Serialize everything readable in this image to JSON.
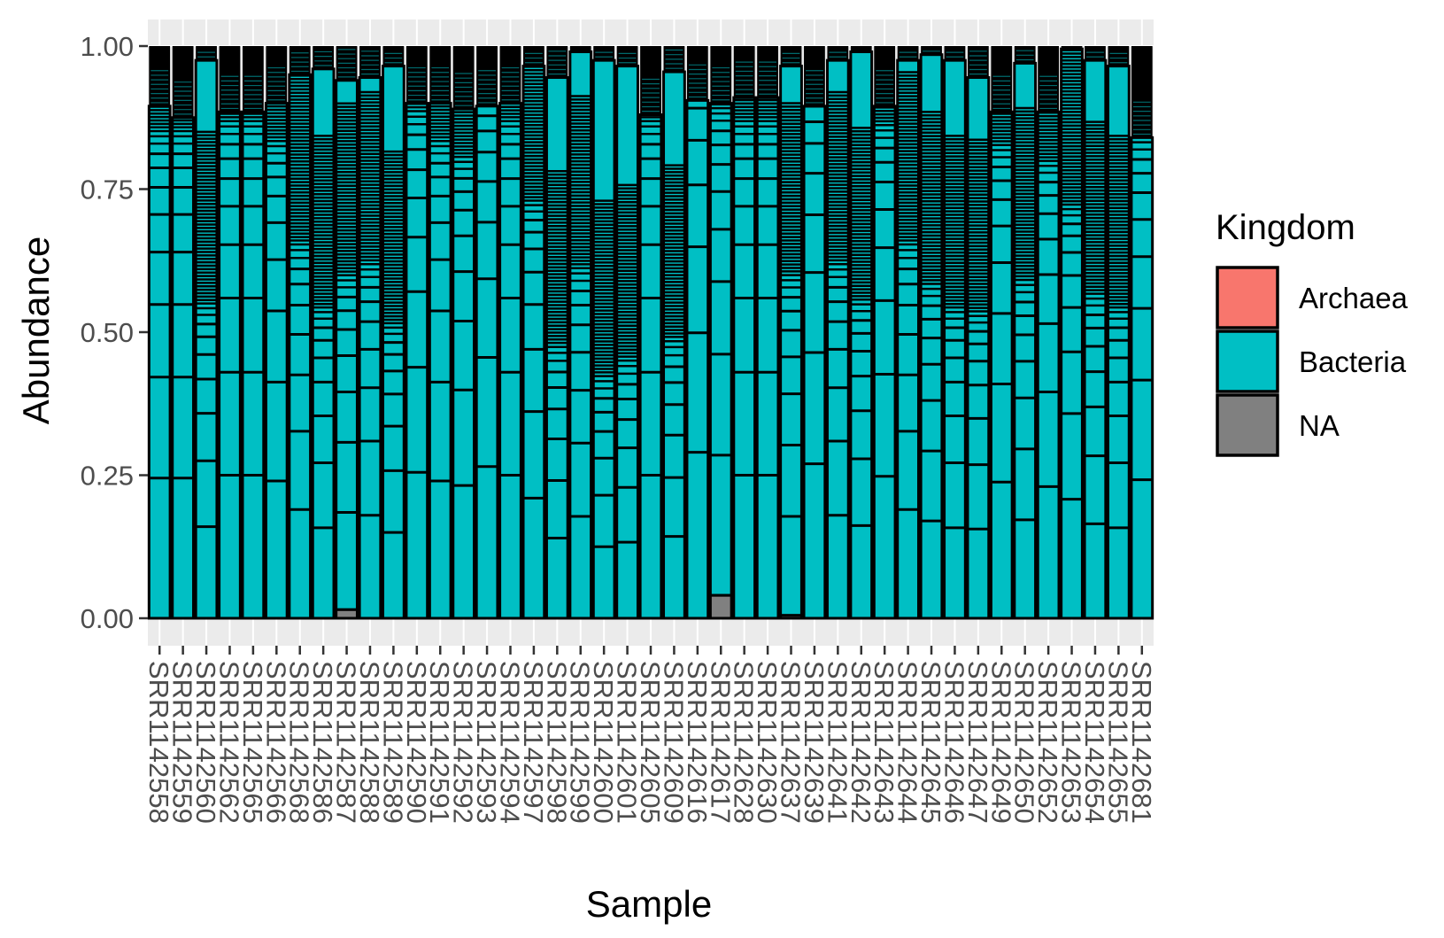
{
  "chart_data": {
    "type": "bar",
    "stacked": true,
    "xlabel": "Sample",
    "ylabel": "Abundance",
    "ylim": [
      0,
      1.0
    ],
    "yticks": [
      "0.00",
      "0.25",
      "0.50",
      "0.75",
      "1.00"
    ],
    "ytick_values": [
      0,
      0.25,
      0.5,
      0.75,
      1.0
    ],
    "grid": true,
    "legend": {
      "title": "Kingdom",
      "position": "right",
      "entries": [
        {
          "label": "Archaea",
          "color": "#F8766D"
        },
        {
          "label": "Bacteria",
          "color": "#00BFC4"
        },
        {
          "label": "NA",
          "color": "#808080"
        }
      ]
    },
    "categories": [
      "SRR1142558",
      "SRR1142559",
      "SRR1142560",
      "SRR1142562",
      "SRR1142565",
      "SRR1142566",
      "SRR1142568",
      "SRR1142586",
      "SRR1142587",
      "SRR1142588",
      "SRR1142589",
      "SRR1142590",
      "SRR1142591",
      "SRR1142592",
      "SRR1142593",
      "SRR1142594",
      "SRR1142597",
      "SRR1142598",
      "SRR1142599",
      "SRR1142600",
      "SRR1142601",
      "SRR1142605",
      "SRR1142609",
      "SRR1142616",
      "SRR1142617",
      "SRR1142628",
      "SRR1142630",
      "SRR1142637",
      "SRR1142639",
      "SRR1142641",
      "SRR1142642",
      "SRR1142643",
      "SRR1142644",
      "SRR1142645",
      "SRR1142646",
      "SRR1142647",
      "SRR1142649",
      "SRR1142650",
      "SRR1142652",
      "SRR1142653",
      "SRR1142654",
      "SRR1142655",
      "SRR1142681"
    ],
    "series": [
      {
        "name": "Archaea",
        "color": "#F8766D",
        "values": [
          0,
          0,
          0,
          0,
          0,
          0,
          0,
          0,
          0,
          0,
          0,
          0,
          0,
          0,
          0,
          0,
          0,
          0,
          0,
          0,
          0,
          0,
          0,
          0,
          0,
          0,
          0,
          0,
          0,
          0,
          0,
          0,
          0,
          0,
          0,
          0,
          0,
          0,
          0,
          0,
          0,
          0,
          0
        ]
      },
      {
        "name": "Bacteria",
        "color": "#00BFC4",
        "values": [
          1,
          1,
          1,
          1,
          1,
          1,
          1,
          1,
          0.985,
          1,
          1,
          1,
          1,
          1,
          1,
          1,
          1,
          1,
          1,
          1,
          1,
          1,
          1,
          1,
          0.96,
          1,
          1,
          0.995,
          1,
          1,
          1,
          1,
          1,
          1,
          1,
          1,
          1,
          1,
          1,
          1,
          1,
          1,
          1
        ]
      },
      {
        "name": "NA",
        "color": "#808080",
        "values": [
          0,
          0,
          0,
          0,
          0,
          0,
          0,
          0,
          0.015,
          0,
          0,
          0,
          0,
          0,
          0,
          0,
          0,
          0,
          0,
          0,
          0,
          0,
          0,
          0,
          0.04,
          0,
          0,
          0.005,
          0,
          0,
          0,
          0,
          0,
          0,
          0,
          0,
          0,
          0,
          0,
          0,
          0,
          0,
          0
        ]
      }
    ],
    "segment_profile": {
      "description_free": true,
      "first_segments": [
        0.245,
        0.245,
        0.16,
        0.25,
        0.25,
        0.24,
        0.19,
        0.158,
        0.17,
        0.18,
        0.15,
        0.255,
        0.24,
        0.232,
        0.265,
        0.25,
        0.21,
        0.14,
        0.178,
        0.125,
        0.133,
        0.25,
        0.143,
        0.29,
        0.245,
        0.25,
        0.25,
        0.173,
        0.27,
        0.18,
        0.162,
        0.248,
        0.19,
        0.17,
        0.158,
        0.156,
        0.238,
        0.172,
        0.23,
        0.208,
        0.165,
        0.158,
        0.242
      ],
      "colored_top": [
        0.895,
        0.875,
        0.975,
        0.885,
        0.885,
        0.9,
        0.95,
        0.96,
        0.94,
        0.945,
        0.965,
        0.9,
        0.9,
        0.89,
        0.895,
        0.9,
        0.965,
        0.945,
        0.99,
        0.975,
        0.965,
        0.88,
        0.955,
        0.905,
        0.9,
        0.91,
        0.91,
        0.965,
        0.895,
        0.975,
        0.99,
        0.895,
        0.975,
        0.985,
        0.975,
        0.945,
        0.885,
        0.97,
        0.885,
        0.995,
        0.975,
        0.965,
        0.84
      ]
    }
  }
}
